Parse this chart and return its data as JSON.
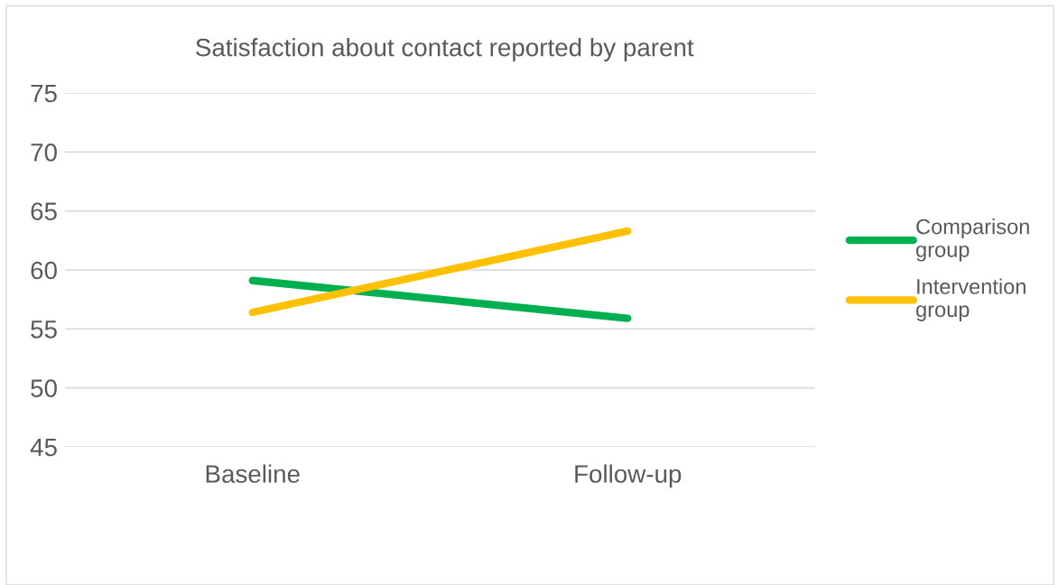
{
  "chart_data": {
    "type": "line",
    "title": "Satisfaction about contact reported by parent",
    "categories": [
      "Baseline",
      "Follow-up"
    ],
    "series": [
      {
        "name": "Comparison\ngroup",
        "color": "#00b050",
        "values": [
          59.1,
          55.9
        ]
      },
      {
        "name": "Intervention\ngroup",
        "color": "#ffc000",
        "values": [
          56.4,
          63.3
        ]
      }
    ],
    "ylim": [
      45,
      75
    ],
    "yticks": [
      45,
      50,
      55,
      60,
      65,
      70,
      75
    ],
    "grid": "y",
    "legend": "right",
    "marker": "none",
    "line_style": "solid"
  }
}
